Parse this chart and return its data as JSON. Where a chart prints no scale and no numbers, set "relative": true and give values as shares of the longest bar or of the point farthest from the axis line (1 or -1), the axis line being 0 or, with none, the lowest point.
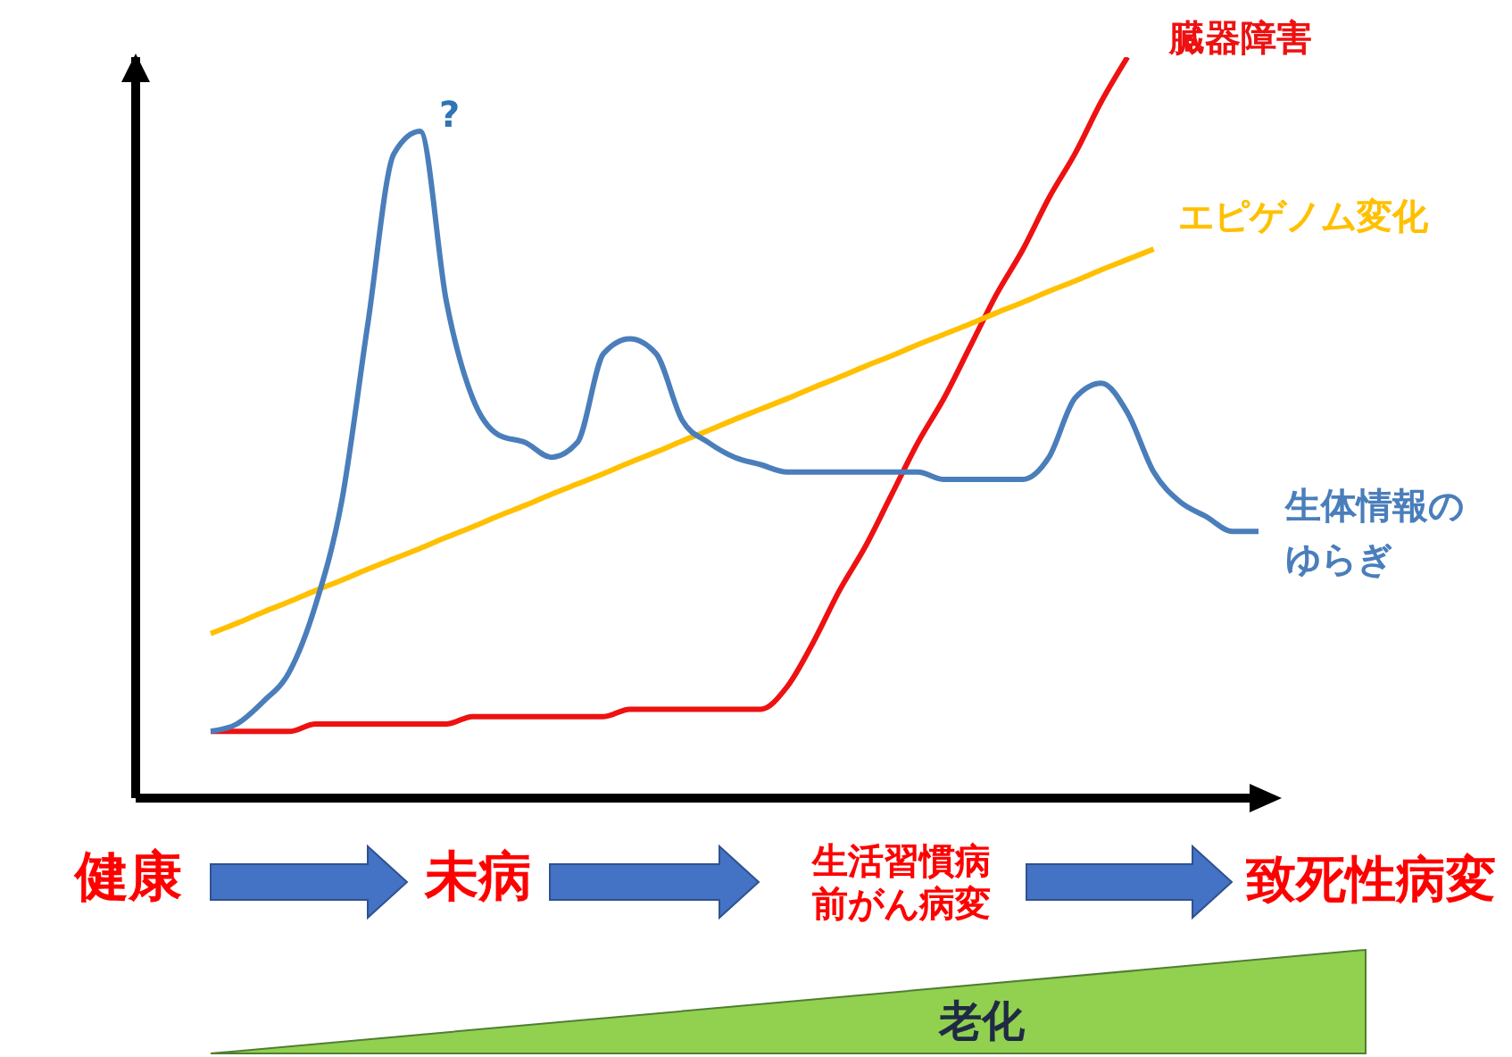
{
  "chart_data": {
    "type": "line",
    "relative": true,
    "categories": [
      null,
      null,
      null,
      null,
      null,
      null,
      null,
      null,
      null,
      null,
      null,
      null,
      null,
      null,
      null,
      null,
      null,
      null,
      null,
      null,
      null,
      null,
      null,
      null,
      null,
      null,
      null,
      null,
      null,
      null,
      null,
      null,
      null,
      null,
      null,
      null,
      null,
      null,
      null,
      null,
      null
    ],
    "series": [
      {
        "name": "臓器障害",
        "color": "#ee1111",
        "values": [
          0.09,
          0.09,
          0.09,
          0.09,
          0.1,
          0.1,
          0.1,
          0.1,
          0.1,
          0.1,
          0.11,
          0.11,
          0.11,
          0.11,
          0.11,
          0.11,
          0.12,
          0.12,
          0.12,
          0.12,
          0.12,
          0.12,
          0.15,
          0.21,
          0.28,
          0.34,
          0.41,
          0.48,
          0.54,
          0.61,
          0.68,
          0.74,
          0.81,
          0.87,
          0.94,
          1.0,
          null,
          null,
          null,
          null,
          null
        ]
      },
      {
        "name": "エピゲノム変化",
        "color": "#ffc000",
        "values": [
          0.222,
          0.236,
          0.251,
          0.265,
          0.28,
          0.294,
          0.309,
          0.323,
          0.337,
          0.352,
          0.366,
          0.381,
          0.395,
          0.41,
          0.424,
          0.438,
          0.453,
          0.467,
          0.482,
          0.496,
          0.511,
          0.525,
          0.539,
          0.554,
          0.568,
          0.583,
          0.597,
          0.612,
          0.626,
          0.64,
          0.655,
          0.669,
          0.684,
          0.698,
          0.713,
          0.727,
          0.741,
          null,
          null,
          null,
          null
        ]
      },
      {
        "name": "生体情報のゆらぎ",
        "color": "#4a7ebb",
        "values": [
          0.09,
          0.1,
          0.13,
          0.17,
          0.26,
          0.4,
          0.64,
          0.87,
          0.9,
          0.67,
          0.54,
          0.49,
          0.48,
          0.46,
          0.48,
          0.6,
          0.62,
          0.6,
          0.51,
          0.48,
          0.46,
          0.45,
          0.44,
          0.44,
          0.44,
          0.44,
          0.44,
          0.44,
          0.43,
          0.43,
          0.43,
          0.43,
          0.46,
          0.54,
          0.56,
          0.52,
          0.44,
          0.4,
          0.38,
          0.36,
          0.36
        ]
      }
    ],
    "annotations": [
      "?",
      "健康",
      "未病",
      "生活習慣病前がん病変",
      "致死性病変",
      "老化"
    ]
  }
}
